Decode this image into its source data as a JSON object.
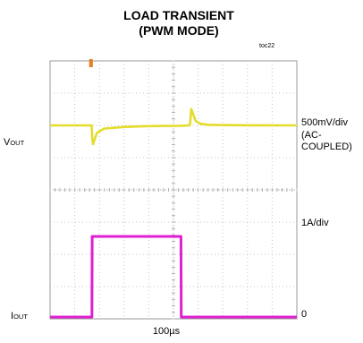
{
  "chart_data": {
    "type": "line",
    "title": "LOAD TRANSIENT",
    "subtitle": "(PWM MODE)",
    "figure_id": "toc22",
    "xlabel": "100µs",
    "x_unit": "µs",
    "grid": true,
    "divisions": {
      "x": 10,
      "y": 8
    },
    "series": [
      {
        "trace": "VOUT",
        "label_main": "V",
        "label_sub": "OUT",
        "scale_label": "500mV/div",
        "coupling_label": "(AC-COUPLED)",
        "color": "#e4dc2c",
        "x": [
          0,
          160,
          168,
          171,
          174,
          190,
          220,
          305,
          400,
          531,
          566,
          568,
          572,
          578,
          590,
          610,
          640,
          700,
          800,
          1000
        ],
        "y": [
          0,
          0,
          0,
          -1.0,
          -1.5,
          -0.6,
          -0.25,
          -0.12,
          -0.06,
          -0.03,
          0,
          0.3,
          1.3,
          1.0,
          0.35,
          0.12,
          0.05,
          0.02,
          0.01,
          0
        ]
      },
      {
        "trace": "IOUT",
        "label_main": "I",
        "label_sub": "OUT",
        "scale_label": "1A/div",
        "zero_label": "0",
        "color": "#e01fd0",
        "x": [
          0,
          169.5,
          170.5,
          530.5,
          531.5,
          1000
        ],
        "y": [
          0,
          0,
          2.5,
          2.5,
          0,
          0
        ]
      }
    ]
  }
}
